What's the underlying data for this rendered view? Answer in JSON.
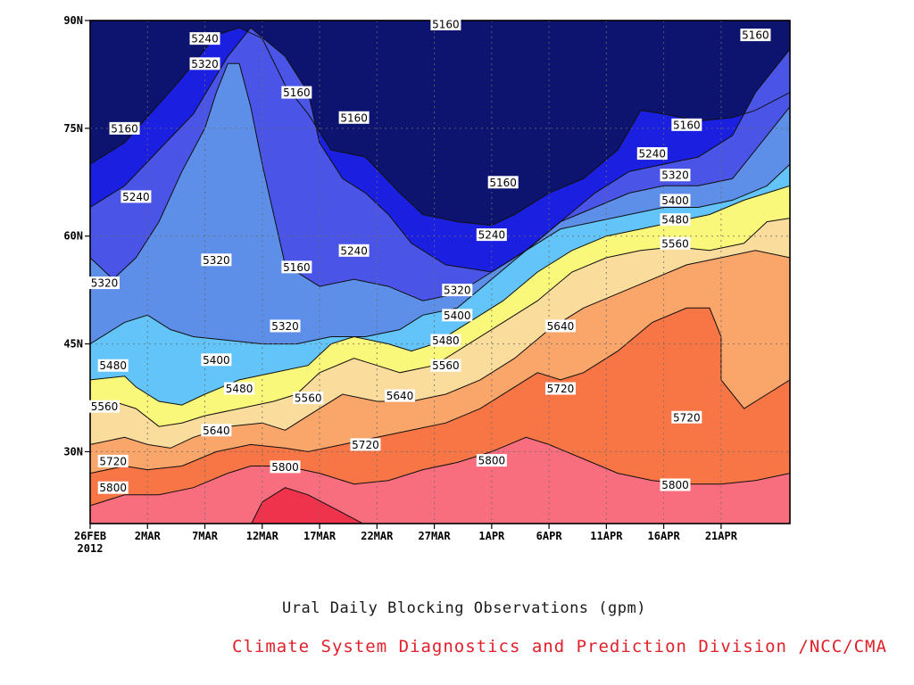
{
  "chart_data": {
    "type": "contour",
    "title": "Ural Daily Blocking Observations (gpm)",
    "credit": "Climate System Diagnostics and Prediction Division /NCC/CMA",
    "x_ticks": [
      "26FEB",
      "2MAR",
      "7MAR",
      "12MAR",
      "17MAR",
      "22MAR",
      "27MAR",
      "1APR",
      "6APR",
      "11APR",
      "16APR",
      "21APR"
    ],
    "x_year_label": "2012",
    "x_range": [
      "2012-02-26",
      "2012-04-27"
    ],
    "y_ticks": [
      "30N",
      "45N",
      "60N",
      "75N",
      "90N"
    ],
    "y_range": [
      20,
      90
    ],
    "contour_levels": [
      5160,
      5240,
      5320,
      5400,
      5480,
      5560,
      5640,
      5720,
      5800
    ],
    "fill_colors": [
      "#0c1470",
      "#1a1fe0",
      "#4a55e8",
      "#5d8ee8",
      "#62c4f8",
      "#faf87a",
      "#fadc9c",
      "#faa56a",
      "#f87545",
      "#f86e7e",
      "#f0334d"
    ],
    "contour_labels": [
      {
        "text": "5160",
        "date": "2012-02-29",
        "lat": 75.0
      },
      {
        "text": "5240",
        "date": "2012-03-07",
        "lat": 87.5
      },
      {
        "text": "5320",
        "date": "2012-03-07",
        "lat": 84.0
      },
      {
        "text": "5160",
        "date": "2012-03-15",
        "lat": 80.0
      },
      {
        "text": "5160",
        "date": "2012-03-20",
        "lat": 76.5
      },
      {
        "text": "5160",
        "date": "2012-03-28",
        "lat": 89.5
      },
      {
        "text": "5160",
        "date": "2012-04-24",
        "lat": 88.0
      },
      {
        "text": "5160",
        "date": "2012-04-02",
        "lat": 67.5
      },
      {
        "text": "5160",
        "date": "2012-04-18",
        "lat": 75.5
      },
      {
        "text": "5240",
        "date": "2012-03-01",
        "lat": 65.5
      },
      {
        "text": "5240",
        "date": "2012-04-15",
        "lat": 71.5
      },
      {
        "text": "5320",
        "date": "2012-04-17",
        "lat": 68.5
      },
      {
        "text": "5400",
        "date": "2012-04-17",
        "lat": 65.0
      },
      {
        "text": "5480",
        "date": "2012-04-17",
        "lat": 62.3
      },
      {
        "text": "5560",
        "date": "2012-04-17",
        "lat": 59.0
      },
      {
        "text": "5240",
        "date": "2012-04-01",
        "lat": 60.2
      },
      {
        "text": "5240",
        "date": "2012-03-20",
        "lat": 58.0
      },
      {
        "text": "5160",
        "date": "2012-03-15",
        "lat": 55.7
      },
      {
        "text": "5320",
        "date": "2012-03-08",
        "lat": 56.7
      },
      {
        "text": "5320",
        "date": "2012-02-26",
        "lat": 53.5
      },
      {
        "text": "5320",
        "date": "2012-03-29",
        "lat": 52.5
      },
      {
        "text": "5400",
        "date": "2012-03-29",
        "lat": 49.0
      },
      {
        "text": "5480",
        "date": "2012-03-28",
        "lat": 45.5
      },
      {
        "text": "5560",
        "date": "2012-03-28",
        "lat": 42.0
      },
      {
        "text": "5640",
        "date": "2012-04-07",
        "lat": 47.5
      },
      {
        "text": "5320",
        "date": "2012-03-14",
        "lat": 47.5
      },
      {
        "text": "5400",
        "date": "2012-03-08",
        "lat": 42.8
      },
      {
        "text": "5480",
        "date": "2012-02-28",
        "lat": 42.0
      },
      {
        "text": "5480",
        "date": "2012-03-10",
        "lat": 38.8
      },
      {
        "text": "5560",
        "date": "2012-03-16",
        "lat": 37.5
      },
      {
        "text": "5640",
        "date": "2012-03-24",
        "lat": 37.8
      },
      {
        "text": "5560",
        "date": "2012-02-27",
        "lat": 36.3
      },
      {
        "text": "5640",
        "date": "2012-03-08",
        "lat": 33.0
      },
      {
        "text": "5720",
        "date": "2012-04-07",
        "lat": 38.8
      },
      {
        "text": "5720",
        "date": "2012-04-18",
        "lat": 34.8
      },
      {
        "text": "5720",
        "date": "2012-03-21",
        "lat": 31.0
      },
      {
        "text": "5720",
        "date": "2012-02-28",
        "lat": 28.7
      },
      {
        "text": "5800",
        "date": "2012-03-14",
        "lat": 27.9
      },
      {
        "text": "5800",
        "date": "2012-04-01",
        "lat": 28.8
      },
      {
        "text": "5800",
        "date": "2012-02-28",
        "lat": 25.0
      },
      {
        "text": "5800",
        "date": "2012-04-17",
        "lat": 25.4
      }
    ],
    "grid": true,
    "legend": "none"
  }
}
